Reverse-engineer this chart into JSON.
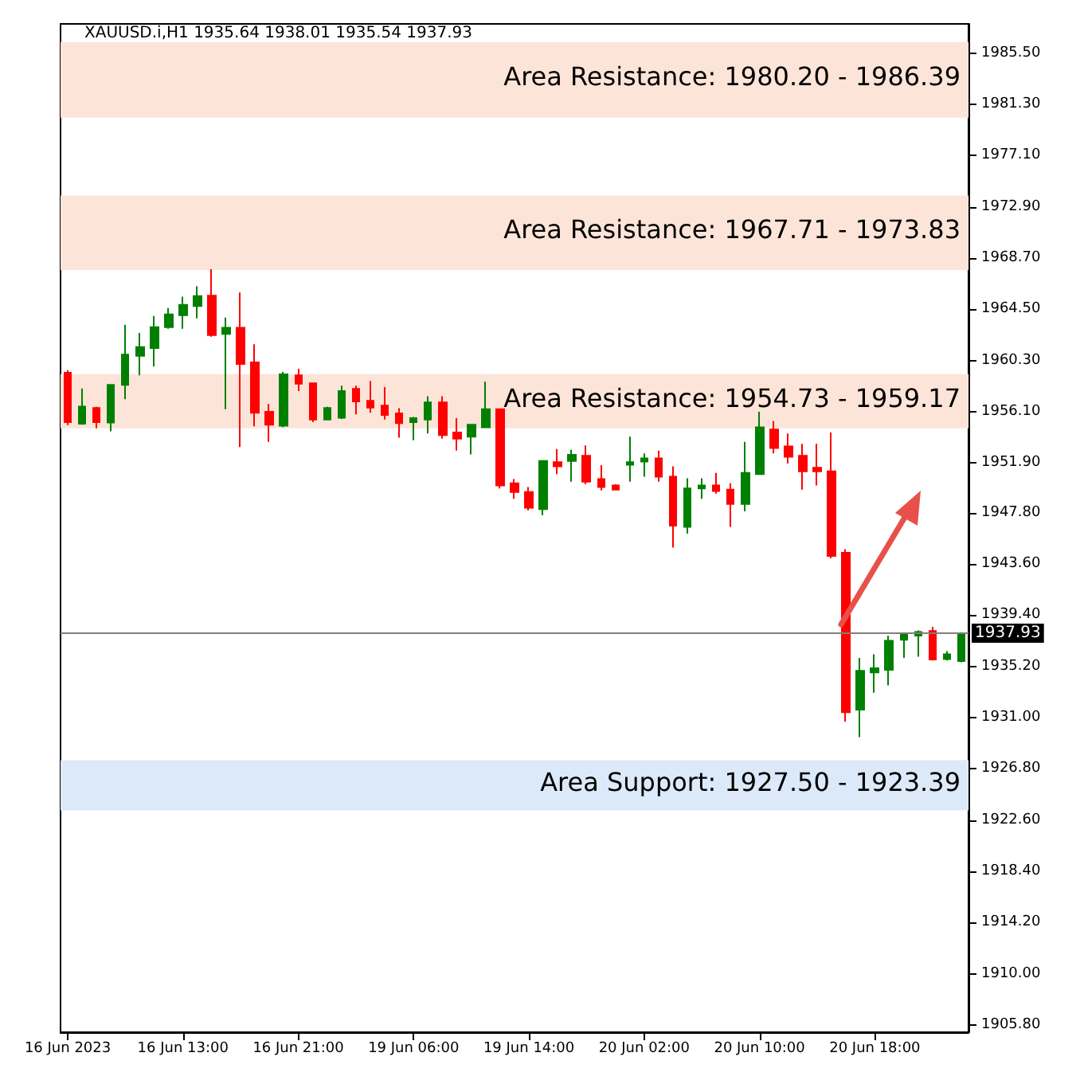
{
  "chart_data": {
    "type": "candlestick",
    "title": "XAUUSD.i,H1 1935.64 1938.01 1935.54 1937.93",
    "categories": [
      "16 Jun 2023",
      null,
      null,
      null,
      null,
      null,
      null,
      null,
      "16 Jun 13:00",
      null,
      null,
      null,
      null,
      null,
      null,
      null,
      "16 Jun 21:00",
      null,
      null,
      null,
      null,
      null,
      null,
      null,
      "19 Jun 06:00",
      null,
      null,
      null,
      null,
      null,
      null,
      null,
      "19 Jun 14:00",
      null,
      null,
      null,
      null,
      null,
      null,
      null,
      "20 Jun 02:00",
      null,
      null,
      null,
      null,
      null,
      null,
      null,
      "20 Jun 10:00",
      null,
      null,
      null,
      null,
      null,
      null,
      null,
      "20 Jun 18:00",
      null,
      null,
      null,
      null,
      null,
      null
    ],
    "ohlc": [
      [
        1959.28,
        1959.5,
        1955.0,
        1955.24
      ],
      [
        1955.11,
        1958.0,
        1955.03,
        1956.52
      ],
      [
        1956.39,
        1956.5,
        1954.73,
        1955.24
      ],
      [
        1955.2,
        1958.3,
        1954.48,
        1958.3
      ],
      [
        1958.3,
        1963.23,
        1957.11,
        1960.77
      ],
      [
        1960.68,
        1962.55,
        1959.07,
        1961.4
      ],
      [
        1961.32,
        1963.95,
        1959.79,
        1963.02
      ],
      [
        1963.02,
        1964.59,
        1962.89,
        1964.08
      ],
      [
        1964.0,
        1965.52,
        1962.89,
        1964.85
      ],
      [
        1964.76,
        1966.38,
        1963.74,
        1965.57
      ],
      [
        1965.61,
        1967.78,
        1962.25,
        1962.38
      ],
      [
        1962.47,
        1963.82,
        1956.3,
        1962.98
      ],
      [
        1962.98,
        1965.87,
        1953.2,
        1960.0
      ],
      [
        1960.13,
        1961.62,
        1954.9,
        1956.0
      ],
      [
        1956.09,
        1956.73,
        1953.62,
        1955.03
      ],
      [
        1954.94,
        1959.36,
        1954.82,
        1959.15
      ],
      [
        1959.07,
        1959.62,
        1957.79,
        1958.39
      ],
      [
        1958.43,
        1958.43,
        1955.24,
        1955.45
      ],
      [
        1955.45,
        1956.5,
        1955.4,
        1956.39
      ],
      [
        1955.6,
        1958.22,
        1955.5,
        1957.79
      ],
      [
        1957.96,
        1958.22,
        1955.88,
        1956.94
      ],
      [
        1956.98,
        1958.6,
        1956.0,
        1956.43
      ],
      [
        1956.6,
        1958.12,
        1955.45,
        1955.83
      ],
      [
        1955.96,
        1956.38,
        1953.96,
        1955.15
      ],
      [
        1955.24,
        1955.66,
        1953.75,
        1955.57
      ],
      [
        1955.45,
        1957.36,
        1954.3,
        1956.85
      ],
      [
        1956.85,
        1957.36,
        1953.88,
        1954.17
      ],
      [
        1954.39,
        1955.57,
        1952.9,
        1953.88
      ],
      [
        1954.05,
        1955.03,
        1952.6,
        1955.03
      ],
      [
        1954.81,
        1958.55,
        1954.81,
        1956.3
      ],
      [
        1956.3,
        1956.3,
        1949.8,
        1950.05
      ],
      [
        1950.22,
        1950.56,
        1948.95,
        1949.5
      ],
      [
        1949.5,
        1949.92,
        1948.01,
        1948.22
      ],
      [
        1948.1,
        1952.05,
        1947.59,
        1952.05
      ],
      [
        1951.96,
        1953.03,
        1950.98,
        1951.62
      ],
      [
        1952.05,
        1952.98,
        1950.35,
        1952.56
      ],
      [
        1952.47,
        1953.32,
        1950.14,
        1950.35
      ],
      [
        1950.56,
        1951.71,
        1949.63,
        1949.92
      ],
      [
        1950.05,
        1950.14,
        1949.63,
        1949.71
      ],
      [
        1951.75,
        1954.05,
        1950.35,
        1951.96
      ],
      [
        1952.0,
        1952.68,
        1950.77,
        1952.26
      ],
      [
        1952.26,
        1952.9,
        1950.35,
        1950.77
      ],
      [
        1950.77,
        1951.62,
        1944.95,
        1946.74
      ],
      [
        1946.65,
        1950.64,
        1946.1,
        1949.8
      ],
      [
        1949.8,
        1950.64,
        1948.95,
        1950.05
      ],
      [
        1950.05,
        1951.07,
        1949.37,
        1949.58
      ],
      [
        1949.71,
        1950.22,
        1946.65,
        1948.52
      ],
      [
        1948.52,
        1953.62,
        1947.92,
        1951.07
      ],
      [
        1950.98,
        1956.09,
        1950.98,
        1954.81
      ],
      [
        1954.64,
        1955.32,
        1952.68,
        1953.11
      ],
      [
        1953.24,
        1954.3,
        1951.84,
        1952.39
      ],
      [
        1952.47,
        1953.45,
        1949.71,
        1951.2
      ],
      [
        1951.5,
        1953.45,
        1950.05,
        1951.2
      ],
      [
        1951.2,
        1954.39,
        1944.06,
        1944.27
      ],
      [
        1944.52,
        1944.82,
        1930.67,
        1931.44
      ],
      [
        1931.65,
        1935.9,
        1929.4,
        1934.84
      ],
      [
        1934.71,
        1936.2,
        1933.05,
        1935.05
      ],
      [
        1934.92,
        1937.72,
        1933.65,
        1937.3
      ],
      [
        1937.39,
        1937.9,
        1935.9,
        1937.81
      ],
      [
        1937.73,
        1938.15,
        1936.0,
        1938.02
      ],
      [
        1938.11,
        1938.45,
        1935.69,
        1935.77
      ],
      [
        1935.81,
        1936.45,
        1935.69,
        1936.2
      ],
      [
        1935.64,
        1938.01,
        1935.54,
        1937.93
      ]
    ],
    "colors": [
      "#ff0000",
      "#008000",
      "#ff0000",
      "#008000",
      "#008000",
      "#008000",
      "#008000",
      "#008000",
      "#008000",
      "#008000",
      "#ff0000",
      "#008000",
      "#ff0000",
      "#ff0000",
      "#ff0000",
      "#008000",
      "#ff0000",
      "#ff0000",
      "#008000",
      "#008000",
      "#ff0000",
      "#ff0000",
      "#ff0000",
      "#ff0000",
      "#008000",
      "#008000",
      "#ff0000",
      "#ff0000",
      "#008000",
      "#008000",
      "#ff0000",
      "#ff0000",
      "#ff0000",
      "#008000",
      "#ff0000",
      "#008000",
      "#ff0000",
      "#ff0000",
      "#ff0000",
      "#008000",
      "#008000",
      "#ff0000",
      "#ff0000",
      "#008000",
      "#008000",
      "#ff0000",
      "#ff0000",
      "#008000",
      "#008000",
      "#ff0000",
      "#ff0000",
      "#ff0000",
      "#ff0000",
      "#ff0000",
      "#ff0000",
      "#008000",
      "#008000",
      "#008000",
      "#008000",
      "#008000",
      "#ff0000",
      "#008000",
      "#008000"
    ],
    "ylim": [
      1905.2,
      1987.9
    ],
    "yticks": [
      {
        "value": 1905.8,
        "label": "1905.80"
      },
      {
        "value": 1910,
        "label": "1910.00"
      },
      {
        "value": 1914.2,
        "label": "1914.20"
      },
      {
        "value": 1918.4,
        "label": "1918.40"
      },
      {
        "value": 1922.6,
        "label": "1922.60"
      },
      {
        "value": 1926.8,
        "label": "1926.80"
      },
      {
        "value": 1931,
        "label": "1931.00"
      },
      {
        "value": 1935.2,
        "label": "1935.20"
      },
      {
        "value": 1939.4,
        "label": "1939.40"
      },
      {
        "value": 1943.6,
        "label": "1943.60"
      },
      {
        "value": 1947.8,
        "label": "1947.80"
      },
      {
        "value": 1951.9,
        "label": "1951.90"
      },
      {
        "value": 1956.1,
        "label": "1956.10"
      },
      {
        "value": 1960.3,
        "label": "1960.30"
      },
      {
        "value": 1964.5,
        "label": "1964.50"
      },
      {
        "value": 1968.7,
        "label": "1968.70"
      },
      {
        "value": 1972.9,
        "label": "1972.90"
      },
      {
        "value": 1977.1,
        "label": "1977.10"
      },
      {
        "value": 1981.3,
        "label": "1981.30"
      },
      {
        "value": 1985.5,
        "label": "1985.50"
      }
    ],
    "bands": [
      {
        "axis": "y",
        "from": 1980.2,
        "to": 1986.39,
        "label": "Area Resistance: 1980.20 - 1986.39",
        "color": "#fde4d8"
      },
      {
        "axis": "y",
        "from": 1967.71,
        "to": 1973.83,
        "label": "Area Resistance: 1967.71 - 1973.83",
        "color": "#fde4d8"
      },
      {
        "axis": "y",
        "from": 1954.73,
        "to": 1959.17,
        "label": "Area Resistance: 1954.73 - 1959.17",
        "color": "#fde4d8"
      },
      {
        "axis": "y",
        "from": 1923.39,
        "to": 1927.5,
        "label": "Area Support: 1927.50 - 1923.39",
        "color": "#dce9f8"
      }
    ],
    "ref_lines": [
      {
        "axis": "y",
        "value": 1937.93,
        "label": "1937.93",
        "color": "#808080"
      }
    ],
    "grid": false
  }
}
